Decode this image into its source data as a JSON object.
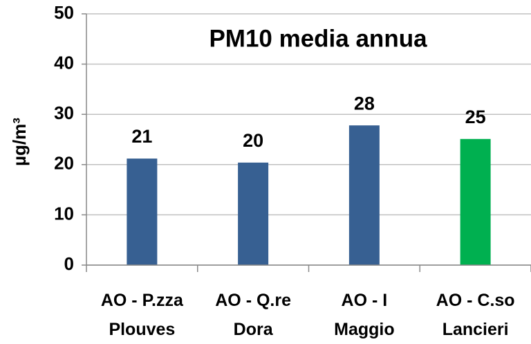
{
  "chart_data": {
    "type": "bar",
    "title": "PM10 media annua",
    "y_label": "µg/m³",
    "categories": [
      [
        "AO - P.zza",
        "Plouves"
      ],
      [
        "AO - Q.re",
        "Dora"
      ],
      [
        "AO - I",
        "Maggio"
      ],
      [
        "AO - C.so",
        "Lancieri"
      ]
    ],
    "values": [
      21.2,
      20.4,
      27.8,
      25.1
    ],
    "value_labels": [
      "21",
      "20",
      "28",
      "25"
    ],
    "colors": [
      "#376092",
      "#376092",
      "#376092",
      "#00b050"
    ],
    "ylim": [
      0,
      50
    ],
    "yticks": [
      0,
      10,
      20,
      30,
      40,
      50
    ],
    "grid": true
  }
}
